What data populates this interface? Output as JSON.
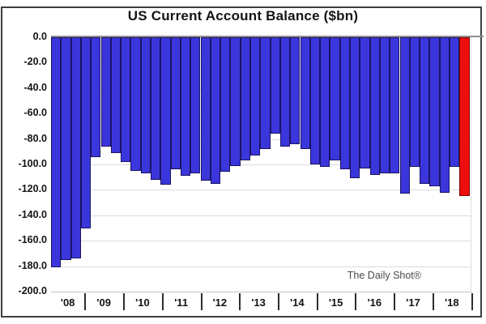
{
  "title": "US Current Account Balance ($bn)",
  "watermark": "The Daily Shot®",
  "chart_data": {
    "type": "bar",
    "title": "US Current Account Balance ($bn)",
    "unit": "$bn",
    "x_tick_labels": [
      "'08",
      "'09",
      "'10",
      "'11",
      "'12",
      "'13",
      "'14",
      "'15",
      "'16",
      "'17",
      "'18"
    ],
    "y_tick_labels": [
      "0.0",
      "-20.0",
      "-40.0",
      "-60.0",
      "-80.0",
      "-100.0",
      "-120.0",
      "-140.0",
      "-160.0",
      "-180.0",
      "-200.0"
    ],
    "ylim": [
      0,
      -200
    ],
    "grid": "horizontal",
    "legend": "none",
    "bar_colors": {
      "default": "#3B36DB",
      "default_border": "#1a1464",
      "highlight": "#EC0D0D",
      "highlight_border": "#7a0505"
    },
    "highlight_note": "last bar (latest quarter) shown in red",
    "series": [
      {
        "year": "'08",
        "values": [
          -181,
          -175,
          -174,
          -150
        ]
      },
      {
        "year": "'09",
        "values": [
          -94,
          -86,
          -91,
          -98
        ]
      },
      {
        "year": "'10",
        "values": [
          -105,
          -107,
          -112,
          -116
        ]
      },
      {
        "year": "'11",
        "values": [
          -104,
          -109,
          -107,
          -113
        ]
      },
      {
        "year": "'12",
        "values": [
          -115,
          -106,
          -101,
          -97
        ]
      },
      {
        "year": "'13",
        "values": [
          -93,
          -88,
          -76,
          -86
        ]
      },
      {
        "year": "'14",
        "values": [
          -84,
          -88,
          -100,
          -102
        ]
      },
      {
        "year": "'15",
        "values": [
          -97,
          -104,
          -111,
          -103
        ]
      },
      {
        "year": "'16",
        "values": [
          -108,
          -107,
          -107,
          -123
        ]
      },
      {
        "year": "'17",
        "values": [
          -102,
          -115,
          -117,
          -122
        ]
      },
      {
        "year": "'18",
        "values": [
          -102,
          -125
        ]
      }
    ],
    "annotation": "The Daily Shot®"
  }
}
